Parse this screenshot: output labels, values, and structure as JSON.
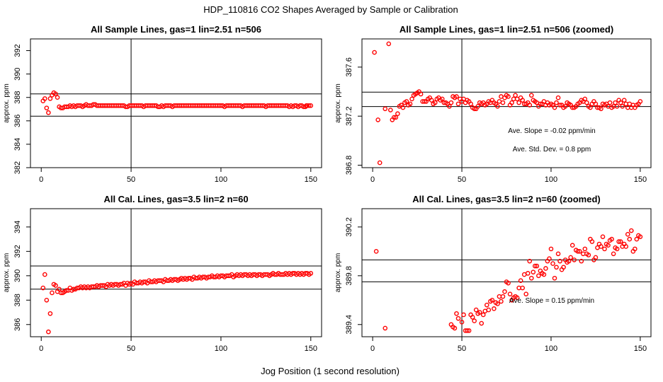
{
  "figure": {
    "suptitle": "HDP_110816  CO2 Shapes Averaged by Sample or Calibration",
    "xlabel": "Jog Position (1 second resolution)",
    "marker_color": "#ff0000"
  },
  "chart_data": [
    {
      "type": "scatter",
      "title": "All Sample Lines, gas=1 lin=2.51 n=506",
      "ylabel": "approx. ppm",
      "xlim": [
        -6,
        156
      ],
      "ylim": [
        382,
        393
      ],
      "xticks": [
        0,
        50,
        100,
        150
      ],
      "yticks": [
        382,
        384,
        386,
        388,
        390,
        392
      ],
      "vline": 50,
      "hlines": [
        388.3,
        386.4
      ],
      "annotations": [],
      "x": [
        1,
        2,
        3,
        4,
        5,
        6,
        7,
        8,
        9,
        10,
        11,
        12,
        13,
        14,
        15,
        16,
        17,
        18,
        19,
        20,
        21,
        22,
        23,
        24,
        25,
        26,
        27,
        28,
        29,
        30,
        31,
        32,
        33,
        34,
        35,
        36,
        37,
        38,
        39,
        40,
        41,
        42,
        43,
        44,
        45,
        46,
        47,
        48,
        49,
        50,
        51,
        52,
        53,
        54,
        55,
        56,
        57,
        58,
        59,
        60,
        61,
        62,
        63,
        64,
        65,
        66,
        67,
        68,
        69,
        70,
        71,
        72,
        73,
        74,
        75,
        76,
        77,
        78,
        79,
        80,
        81,
        82,
        83,
        84,
        85,
        86,
        87,
        88,
        89,
        90,
        91,
        92,
        93,
        94,
        95,
        96,
        97,
        98,
        99,
        100,
        101,
        102,
        103,
        104,
        105,
        106,
        107,
        108,
        109,
        110,
        111,
        112,
        113,
        114,
        115,
        116,
        117,
        118,
        119,
        120,
        121,
        122,
        123,
        124,
        125,
        126,
        127,
        128,
        129,
        130,
        131,
        132,
        133,
        134,
        135,
        136,
        137,
        138,
        139,
        140,
        141,
        142,
        143,
        144,
        145,
        146,
        147,
        147.5,
        148,
        149,
        150
      ],
      "y": [
        387.7,
        387.9,
        387.1,
        386.7,
        387.9,
        388.2,
        388.4,
        388.3,
        388.0,
        387.2,
        387.1,
        387.1,
        387.2,
        387.2,
        387.2,
        387.3,
        387.2,
        387.3,
        387.2,
        387.3,
        387.3,
        387.3,
        387.2,
        387.3,
        387.4,
        387.3,
        387.3,
        387.3,
        387.4,
        387.4,
        387.3,
        387.3,
        387.3,
        387.3,
        387.3,
        387.3,
        387.3,
        387.3,
        387.3,
        387.3,
        387.3,
        387.3,
        387.3,
        387.3,
        387.3,
        387.3,
        387.2,
        387.2,
        387.3,
        387.3,
        387.3,
        387.3,
        387.3,
        387.3,
        387.3,
        387.3,
        387.2,
        387.3,
        387.3,
        387.3,
        387.3,
        387.3,
        387.3,
        387.3,
        387.2,
        387.2,
        387.3,
        387.2,
        387.3,
        387.3,
        387.3,
        387.3,
        387.2,
        387.3,
        387.3,
        387.3,
        387.3,
        387.3,
        387.3,
        387.3,
        387.3,
        387.3,
        387.3,
        387.3,
        387.3,
        387.3,
        387.3,
        387.3,
        387.3,
        387.3,
        387.3,
        387.3,
        387.3,
        387.3,
        387.3,
        387.3,
        387.3,
        387.3,
        387.3,
        387.3,
        387.3,
        387.2,
        387.3,
        387.3,
        387.3,
        387.3,
        387.3,
        387.3,
        387.3,
        387.3,
        387.3,
        387.2,
        387.3,
        387.3,
        387.3,
        387.3,
        387.3,
        387.3,
        387.3,
        387.3,
        387.3,
        387.3,
        387.3,
        387.3,
        387.2,
        387.3,
        387.3,
        387.3,
        387.3,
        387.3,
        387.3,
        387.3,
        387.3,
        387.3,
        387.3,
        387.3,
        387.3,
        387.2,
        387.3,
        387.2,
        387.3,
        387.3,
        387.2,
        387.3,
        387.3,
        387.2,
        387.2,
        387.3,
        387.3,
        387.3,
        387.3
      ]
    },
    {
      "type": "scatter",
      "title": "All Sample Lines, gas=1 lin=2.51 n=506 (zoomed)",
      "ylabel": "approx. ppm",
      "xlim": [
        -6,
        156
      ],
      "ylim": [
        386.78,
        387.83
      ],
      "xticks": [
        0,
        50,
        100,
        150
      ],
      "yticks": [
        386.8,
        387.2,
        387.6
      ],
      "ytick_labels": [
        "386.8",
        "387.2",
        "387.6"
      ],
      "vline": 50,
      "hlines": [
        387.396,
        387.278
      ],
      "annotations": [
        "Ave. Slope =  -0.02  ppm/min",
        "Ave. Std. Dev. =  0.8  ppm"
      ],
      "x": [
        1,
        3,
        4,
        7,
        9,
        10,
        11,
        12,
        13,
        14,
        15,
        16,
        17,
        18,
        19,
        20,
        21,
        22,
        23,
        24,
        25,
        26,
        27,
        28,
        29,
        30,
        31,
        32,
        33,
        34,
        35,
        36,
        37,
        38,
        39,
        40,
        41,
        42,
        43,
        44,
        45,
        46,
        47,
        48,
        49,
        50,
        51,
        52,
        53,
        54,
        55,
        56,
        57,
        58,
        59,
        60,
        61,
        62,
        63,
        64,
        65,
        66,
        67,
        68,
        69,
        70,
        71,
        72,
        73,
        74,
        75,
        76,
        77,
        78,
        79,
        80,
        81,
        82,
        83,
        84,
        85,
        86,
        87,
        88,
        89,
        90,
        91,
        92,
        93,
        94,
        95,
        96,
        97,
        98,
        99,
        100,
        101,
        102,
        103,
        104,
        105,
        106,
        107,
        108,
        109,
        110,
        111,
        112,
        113,
        114,
        115,
        116,
        117,
        118,
        119,
        120,
        121,
        122,
        123,
        124,
        125,
        126,
        127,
        128,
        129,
        130,
        131,
        132,
        133,
        134,
        135,
        136,
        137,
        138,
        139,
        140,
        141,
        142,
        143,
        144,
        145,
        146,
        147,
        148,
        149,
        150
      ],
      "y": [
        387.72,
        387.17,
        386.82,
        387.26,
        387.79,
        387.25,
        387.17,
        387.19,
        387.19,
        387.22,
        387.28,
        387.29,
        387.27,
        387.31,
        387.32,
        387.29,
        387.3,
        387.34,
        387.37,
        387.38,
        387.39,
        387.4,
        387.38,
        387.32,
        387.32,
        387.32,
        387.34,
        387.35,
        387.33,
        387.3,
        387.31,
        387.34,
        387.35,
        387.33,
        387.34,
        387.31,
        387.31,
        387.3,
        387.28,
        387.31,
        387.36,
        387.35,
        387.36,
        387.3,
        387.34,
        387.32,
        387.34,
        387.31,
        387.33,
        387.32,
        387.3,
        387.27,
        387.26,
        387.26,
        387.28,
        387.31,
        387.3,
        387.31,
        387.29,
        387.3,
        387.32,
        387.31,
        387.33,
        387.31,
        387.3,
        387.28,
        387.32,
        387.36,
        387.31,
        387.35,
        387.37,
        387.36,
        387.29,
        387.31,
        387.34,
        387.37,
        387.34,
        387.31,
        387.35,
        387.33,
        387.3,
        387.3,
        387.31,
        387.29,
        387.37,
        387.33,
        387.32,
        387.31,
        387.28,
        387.3,
        387.3,
        387.32,
        387.29,
        387.31,
        387.29,
        387.3,
        387.29,
        387.27,
        387.31,
        387.35,
        387.29,
        387.29,
        387.27,
        387.28,
        387.31,
        387.3,
        387.29,
        387.27,
        387.27,
        387.28,
        387.3,
        387.31,
        387.33,
        387.32,
        387.34,
        387.31,
        387.28,
        387.27,
        387.3,
        387.32,
        387.3,
        387.27,
        387.27,
        387.26,
        387.3,
        387.29,
        387.3,
        387.28,
        387.31,
        387.27,
        387.28,
        387.31,
        387.28,
        387.33,
        387.31,
        387.28,
        387.33,
        387.3,
        387.27,
        387.3,
        387.27,
        387.29,
        387.27,
        387.29,
        387.3,
        387.32
      ]
    },
    {
      "type": "scatter",
      "title": "All Cal. Lines, gas=3.5 lin=2 n=60",
      "ylabel": "approx. ppm",
      "xlim": [
        -6,
        156
      ],
      "ylim": [
        385,
        395.5
      ],
      "xticks": [
        0,
        50,
        100,
        150
      ],
      "yticks": [
        386,
        388,
        390,
        392,
        394
      ],
      "vline": 50,
      "hlines": [
        390.8,
        388.9
      ],
      "annotations": [],
      "x": [
        1,
        2,
        3,
        4,
        5,
        6,
        7,
        8,
        9,
        10,
        11,
        12,
        13,
        14,
        15,
        16,
        17,
        18,
        19,
        20,
        21,
        22,
        23,
        24,
        25,
        26,
        27,
        28,
        29,
        30,
        31,
        32,
        33,
        34,
        35,
        36,
        37,
        38,
        39,
        40,
        41,
        42,
        43,
        44,
        45,
        46,
        47,
        48,
        49,
        50,
        51,
        52,
        53,
        54,
        55,
        56,
        57,
        58,
        59,
        60,
        61,
        62,
        63,
        64,
        65,
        66,
        67,
        68,
        69,
        70,
        71,
        72,
        73,
        74,
        75,
        76,
        77,
        78,
        79,
        80,
        81,
        82,
        83,
        84,
        85,
        86,
        87,
        88,
        89,
        90,
        91,
        92,
        93,
        94,
        95,
        96,
        97,
        98,
        99,
        100,
        101,
        102,
        103,
        104,
        105,
        106,
        107,
        108,
        109,
        110,
        111,
        112,
        113,
        114,
        115,
        116,
        117,
        118,
        119,
        120,
        121,
        122,
        123,
        124,
        125,
        126,
        127,
        128,
        129,
        130,
        131,
        132,
        133,
        134,
        135,
        136,
        137,
        138,
        139,
        140,
        141,
        142,
        143,
        144,
        145,
        146,
        147,
        148,
        149,
        150
      ],
      "y": [
        389.0,
        390.1,
        388.0,
        385.4,
        386.9,
        388.6,
        389.3,
        389.2,
        388.7,
        388.9,
        388.6,
        388.6,
        388.7,
        388.8,
        388.8,
        389.0,
        388.8,
        388.9,
        388.9,
        389.0,
        389.0,
        389.1,
        389.0,
        389.1,
        389.0,
        389.1,
        389.0,
        389.1,
        389.1,
        389.1,
        389.2,
        389.1,
        389.2,
        389.2,
        389.2,
        389.1,
        389.3,
        389.2,
        389.3,
        389.2,
        389.3,
        389.3,
        389.2,
        389.3,
        389.3,
        389.4,
        389.2,
        389.4,
        389.3,
        389.4,
        389.3,
        389.5,
        389.4,
        389.4,
        389.5,
        389.4,
        389.5,
        389.5,
        389.4,
        389.6,
        389.5,
        389.5,
        389.6,
        389.5,
        389.6,
        389.6,
        389.6,
        389.5,
        389.7,
        389.6,
        389.6,
        389.7,
        389.6,
        389.7,
        389.7,
        389.6,
        389.7,
        389.8,
        389.7,
        389.8,
        389.7,
        389.8,
        389.8,
        389.7,
        389.9,
        389.8,
        389.8,
        389.9,
        389.8,
        389.9,
        389.9,
        389.8,
        389.9,
        389.9,
        390.0,
        389.9,
        389.9,
        390.0,
        389.9,
        390.0,
        390.0,
        389.9,
        390.0,
        390.0,
        390.0,
        390.1,
        389.9,
        390.0,
        390.1,
        390.0,
        390.1,
        390.0,
        390.1,
        390.1,
        390.0,
        390.1,
        390.0,
        390.1,
        390.1,
        390.0,
        390.1,
        390.1,
        390.0,
        390.1,
        390.1,
        390.1,
        390.0,
        390.1,
        390.2,
        390.1,
        390.1,
        390.2,
        390.1,
        390.1,
        390.1,
        390.2,
        390.1,
        390.2,
        390.1,
        390.2,
        390.2,
        390.1,
        390.2,
        390.1,
        390.2,
        390.1,
        390.2,
        390.2,
        390.1,
        390.2
      ]
    },
    {
      "type": "scatter",
      "title": "All Cal. Lines, gas=3.5 lin=2 n=60 (zoomed)",
      "ylabel": "approx. ppm",
      "xlim": [
        -6,
        156
      ],
      "ylim": [
        389.3,
        390.35
      ],
      "xticks": [
        0,
        50,
        100,
        150
      ],
      "yticks": [
        389.4,
        389.8,
        390.2
      ],
      "ytick_labels": [
        "389.4",
        "389.8",
        "390.2"
      ],
      "vline": 50,
      "hlines": [
        389.93,
        389.75
      ],
      "annotations": [
        "Ave. Slope =  0.15  ppm/min"
      ],
      "x": [
        2,
        7,
        44,
        45,
        46,
        47,
        48,
        50,
        51,
        52,
        53,
        54,
        55,
        56,
        57,
        58,
        59,
        60,
        61,
        62,
        63,
        64,
        65,
        66,
        67,
        68,
        69,
        70,
        71,
        72,
        73,
        74,
        75,
        76,
        77,
        78,
        79,
        80,
        81,
        82,
        83,
        84,
        85,
        86,
        87,
        88,
        89,
        90,
        91,
        92,
        93,
        94,
        95,
        96,
        97,
        98,
        99,
        100,
        101,
        102,
        103,
        104,
        105,
        106,
        107,
        108,
        109,
        110,
        111,
        112,
        113,
        114,
        115,
        116,
        117,
        118,
        119,
        120,
        121,
        122,
        123,
        124,
        125,
        126,
        127,
        128,
        129,
        130,
        131,
        132,
        133,
        134,
        135,
        136,
        137,
        138,
        139,
        140,
        141,
        142,
        143,
        144,
        145,
        146,
        147,
        148,
        149,
        150
      ],
      "y": [
        390.0,
        389.37,
        389.4,
        389.38,
        389.37,
        389.49,
        389.45,
        389.42,
        389.48,
        389.35,
        389.35,
        389.35,
        389.48,
        389.46,
        389.43,
        389.52,
        389.49,
        389.5,
        389.41,
        389.48,
        389.51,
        389.56,
        389.52,
        389.59,
        389.6,
        389.53,
        389.58,
        389.57,
        389.63,
        389.59,
        389.63,
        389.67,
        389.75,
        389.74,
        389.65,
        389.6,
        389.62,
        389.63,
        389.62,
        389.7,
        389.76,
        389.7,
        389.81,
        389.65,
        389.82,
        389.92,
        389.78,
        389.83,
        389.88,
        389.88,
        389.8,
        389.84,
        389.82,
        389.81,
        389.86,
        389.92,
        389.94,
        390.02,
        389.9,
        389.78,
        389.87,
        389.98,
        389.92,
        389.85,
        389.87,
        389.93,
        389.91,
        389.92,
        389.95,
        390.05,
        389.93,
        390.01,
        390.0,
        390.0,
        389.92,
        389.98,
        390.02,
        389.98,
        389.97,
        390.1,
        390.08,
        389.93,
        389.95,
        390.03,
        390.06,
        390.04,
        390.12,
        390.02,
        390.06,
        390.05,
        390.09,
        390.1,
        389.98,
        390.03,
        390.02,
        390.08,
        390.08,
        390.04,
        390.06,
        390.04,
        390.14,
        390.1,
        390.17,
        390.0,
        390.02,
        390.1,
        390.13,
        390.12
      ]
    }
  ]
}
